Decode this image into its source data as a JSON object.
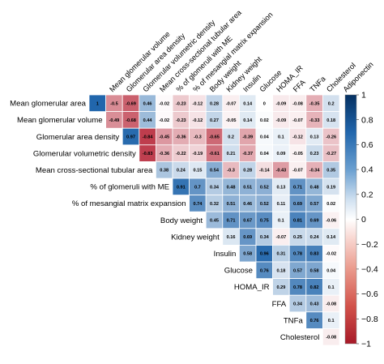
{
  "chart_data": {
    "type": "heatmap",
    "title": "",
    "shape": "upper-triangle correlation matrix",
    "row_labels": [
      "Mean glomerular area",
      "Mean glomerular volume",
      "Glomerular area density",
      "Glomerular volumetric density",
      "Mean cross-sectional tubular area",
      "% of glomeruli with ME",
      "% of mesangial matrix expansion",
      "Body weight",
      "Kidney weight",
      "Insulin",
      "Glucose",
      "HOMA_IR",
      "FFA",
      "TNFa",
      "Cholesterol"
    ],
    "column_labels": [
      "Mean glomerular volume",
      "Glomerular area density",
      "Glomerular volumetric density",
      "Mean cross-sectional tubular area",
      "% of glomeruli with ME",
      "% of mesangial matrix expansion",
      "Body weight",
      "Kidney weight",
      "Insulin",
      "Glucose",
      "HOMA_IR",
      "FFA",
      "TNFa",
      "Cholesterol",
      "Adiponectin"
    ],
    "diagonal_label": "1",
    "values": [
      [
        "1",
        "-0.5",
        "-0.69",
        "0.46",
        "-0.02",
        "-0.23",
        "-0.12",
        "0.28",
        "-0.07",
        "0.14",
        "0",
        "-0.09",
        "-0.08",
        "-0.35",
        "0.2"
      ],
      [
        "-0.49",
        "-0.68",
        "0.44",
        "-0.02",
        "-0.23",
        "-0.12",
        "0.27",
        "-0.05",
        "0.14",
        "0.02",
        "-0.09",
        "-0.07",
        "-0.33",
        "0.18"
      ],
      [
        "0.97",
        "-0.84",
        "-0.45",
        "-0.36",
        "-0.3",
        "-0.65",
        "0.2",
        "-0.39",
        "0.04",
        "0.1",
        "-0.12",
        "0.13",
        "-0.26"
      ],
      [
        "-0.83",
        "-0.36",
        "-0.22",
        "-0.19",
        "-0.61",
        "0.21",
        "-0.37",
        "0.04",
        "0.09",
        "-0.05",
        "0.23",
        "-0.27"
      ],
      [
        "0.38",
        "0.24",
        "0.15",
        "0.54",
        "-0.3",
        "0.28",
        "-0.14",
        "-0.43",
        "-0.07",
        "-0.34",
        "0.35"
      ],
      [
        "0.91",
        "0.7",
        "0.34",
        "0.48",
        "0.51",
        "0.52",
        "0.13",
        "0.71",
        "0.48",
        "0.19"
      ],
      [
        "0.74",
        "0.32",
        "0.51",
        "0.46",
        "0.52",
        "0.11",
        "0.69",
        "0.57",
        "0.02"
      ],
      [
        "0.45",
        "0.71",
        "0.67",
        "0.75",
        "0.1",
        "0.81",
        "0.69",
        "-0.06"
      ],
      [
        "0.16",
        "0.69",
        "0.34",
        "-0.07",
        "0.25",
        "0.24",
        "0.14"
      ],
      [
        "0.58",
        "0.96",
        "0.31",
        "0.78",
        "0.83",
        "-0.02"
      ],
      [
        "0.76",
        "0.18",
        "0.57",
        "0.58",
        "0.04"
      ],
      [
        "0.29",
        "0.78",
        "0.82",
        "0.1"
      ],
      [
        "0.34",
        "0.43",
        "-0.08"
      ],
      [
        "0.76",
        "0.1"
      ],
      [
        "-0.08"
      ]
    ],
    "colorbar": {
      "ticks": [
        "1",
        "0.8",
        "0.6",
        "0.4",
        "0.2",
        "0",
        "−0.2",
        "−0.4",
        "−0.6",
        "−0.8",
        "−1"
      ],
      "range": [
        -1,
        1
      ],
      "low_color": "#b2182b",
      "mid_color": "#ffffff",
      "high_color": "#2166ac"
    },
    "grid": true,
    "legend": "right"
  }
}
